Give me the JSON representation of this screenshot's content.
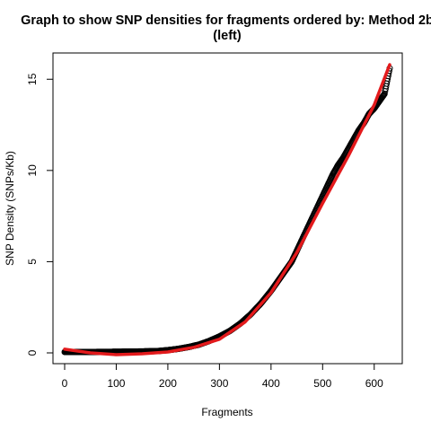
{
  "chart_data": {
    "type": "scatter",
    "title_lines": [
      "Graph to show SNP densities for fragments ordered by: Method 2b",
      "(left)"
    ],
    "xlabel": "Fragments",
    "ylabel": "SNP Density (SNPs/Kb)",
    "xlim": [
      0,
      630
    ],
    "ylim": [
      0,
      15.8
    ],
    "x_ticks": [
      0,
      100,
      200,
      300,
      400,
      500,
      600
    ],
    "y_ticks": [
      0,
      5,
      10,
      15
    ],
    "grid": false,
    "legend": "none",
    "series": [
      {
        "kind": "points",
        "marker": "open-circle",
        "color": "#000000",
        "x": [
          0,
          50,
          100,
          150,
          180,
          200,
          220,
          240,
          260,
          280,
          300,
          320,
          340,
          360,
          380,
          400,
          420,
          440,
          450,
          460,
          470,
          480,
          490,
          500,
          510,
          520,
          530,
          540,
          550,
          560,
          570,
          580,
          590,
          600,
          610,
          620,
          625,
          630
        ],
        "y": [
          0.05,
          0.05,
          0.06,
          0.08,
          0.1,
          0.15,
          0.22,
          0.32,
          0.45,
          0.65,
          0.9,
          1.2,
          1.6,
          2.1,
          2.7,
          3.4,
          4.2,
          5.0,
          5.6,
          6.2,
          6.8,
          7.4,
          8.0,
          8.6,
          9.2,
          9.8,
          10.3,
          10.7,
          11.2,
          11.7,
          12.2,
          12.6,
          13.1,
          13.4,
          13.8,
          14.2,
          14.9,
          15.6
        ]
      },
      {
        "kind": "line",
        "color": "#e31a1c",
        "x": [
          0,
          50,
          100,
          150,
          200,
          250,
          300,
          350,
          400,
          450,
          500,
          550,
          600,
          630
        ],
        "y": [
          0.2,
          0.0,
          -0.1,
          -0.05,
          0.05,
          0.3,
          0.75,
          1.7,
          3.3,
          5.5,
          8.2,
          10.8,
          13.6,
          15.8
        ]
      }
    ]
  }
}
